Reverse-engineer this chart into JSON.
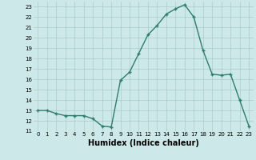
{
  "x": [
    0,
    1,
    2,
    3,
    4,
    5,
    6,
    7,
    8,
    9,
    10,
    11,
    12,
    13,
    14,
    15,
    16,
    17,
    18,
    19,
    20,
    21,
    22,
    23
  ],
  "y": [
    13,
    13,
    12.7,
    12.5,
    12.5,
    12.5,
    12.2,
    11.5,
    11.4,
    15.9,
    16.7,
    18.5,
    20.3,
    21.2,
    22.3,
    22.8,
    23.2,
    22.0,
    18.8,
    16.5,
    16.4,
    16.5,
    14.0,
    11.5
  ],
  "line_color": "#2d7d6e",
  "marker": "+",
  "marker_size": 3,
  "marker_lw": 1.0,
  "bg_color": "#cce8e8",
  "grid_color": "#aacccc",
  "xlabel": "Humidex (Indice chaleur)",
  "xlim": [
    -0.5,
    23.5
  ],
  "ylim": [
    11,
    23.5
  ],
  "yticks": [
    11,
    12,
    13,
    14,
    15,
    16,
    17,
    18,
    19,
    20,
    21,
    22,
    23
  ],
  "xticks": [
    0,
    1,
    2,
    3,
    4,
    5,
    6,
    7,
    8,
    9,
    10,
    11,
    12,
    13,
    14,
    15,
    16,
    17,
    18,
    19,
    20,
    21,
    22,
    23
  ],
  "tick_fontsize": 5,
  "xlabel_fontsize": 7,
  "linewidth": 1.0
}
